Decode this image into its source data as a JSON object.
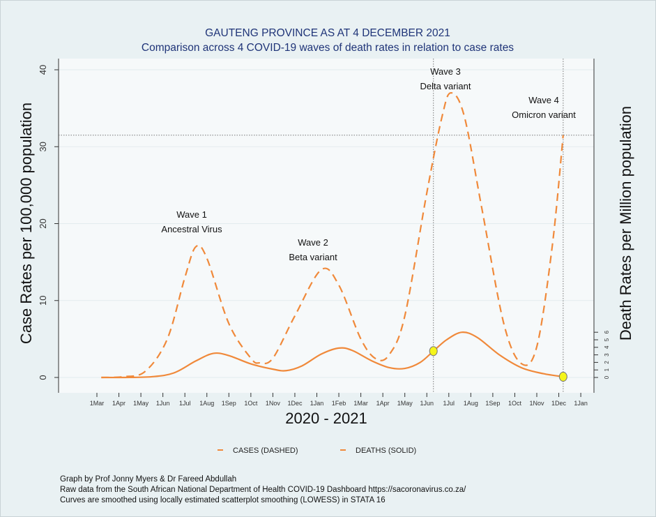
{
  "chart_data": {
    "type": "line",
    "title": "GAUTENG PROVINCE AS AT 4 DECEMBER 2021",
    "subtitle": "Comparison across 4 COVID-19 waves of death rates in relation to case rates",
    "xlabel": "2020 - 2021",
    "ylabel": "Case Rates per 100,000 population",
    "y2label": "Death Rates per Million population",
    "x_ticks": [
      "1Mar",
      "1Apr",
      "1May",
      "1Jun",
      "1Jul",
      "1Aug",
      "1Sep",
      "1Oct",
      "1Nov",
      "1Dec",
      "1Jan",
      "1Feb",
      "1Mar",
      "1Apr",
      "1May",
      "1Jun",
      "1Jul",
      "1Aug",
      "1Sep",
      "1Oct",
      "1Nov",
      "1Dec",
      "1Jan"
    ],
    "y_ticks": [
      "0",
      "10",
      "20",
      "30",
      "40"
    ],
    "y2_ticks": [
      "0",
      "1",
      "2",
      "3",
      "4",
      "5",
      "6"
    ],
    "ylim": [
      0,
      40
    ],
    "y2lim": [
      0,
      6
    ],
    "x_unit": "months since 1 Mar 2020",
    "grid": true,
    "legend_placement": "bottom",
    "series": [
      {
        "name": "CASES (DASHED)",
        "style": "dashed",
        "axis": "left",
        "points": [
          [
            0.2,
            0
          ],
          [
            1.2,
            0.1
          ],
          [
            2.2,
            0.8
          ],
          [
            3.2,
            5
          ],
          [
            4,
            13
          ],
          [
            4.5,
            17
          ],
          [
            5,
            15.5
          ],
          [
            6,
            7
          ],
          [
            7,
            2.5
          ],
          [
            7.4,
            1.9
          ],
          [
            8,
            2.5
          ],
          [
            9,
            8
          ],
          [
            10.2,
            14
          ],
          [
            11,
            12
          ],
          [
            12,
            5
          ],
          [
            12.7,
            2.4
          ],
          [
            13.3,
            3
          ],
          [
            14,
            8
          ],
          [
            15,
            24
          ],
          [
            15.7,
            34
          ],
          [
            16.1,
            37
          ],
          [
            16.7,
            34
          ],
          [
            17.5,
            22
          ],
          [
            18.5,
            7
          ],
          [
            19.3,
            1.8
          ],
          [
            20,
            4
          ],
          [
            20.7,
            17
          ],
          [
            21.2,
            31.5
          ]
        ]
      },
      {
        "name": "DEATHS (SOLID)",
        "style": "solid",
        "axis": "right",
        "points": [
          [
            0.2,
            0
          ],
          [
            1.2,
            0
          ],
          [
            2.5,
            0.1
          ],
          [
            3.5,
            0.6
          ],
          [
            4.5,
            2.2
          ],
          [
            5.3,
            3.2
          ],
          [
            6,
            2.9
          ],
          [
            7,
            1.8
          ],
          [
            8,
            1.1
          ],
          [
            8.6,
            0.9
          ],
          [
            9.3,
            1.5
          ],
          [
            10.2,
            3.1
          ],
          [
            11,
            3.9
          ],
          [
            11.6,
            3.6
          ],
          [
            12.5,
            2.2
          ],
          [
            13.3,
            1.3
          ],
          [
            14,
            1.2
          ],
          [
            14.7,
            2
          ],
          [
            15.3,
            3.5
          ],
          [
            15.9,
            5
          ],
          [
            16.6,
            6
          ],
          [
            17.3,
            5.3
          ],
          [
            18.3,
            3
          ],
          [
            19.3,
            1.3
          ],
          [
            20.3,
            0.5
          ],
          [
            21.2,
            0.1
          ]
        ]
      }
    ],
    "highlight_points": [
      {
        "series": "DEATHS (SOLID)",
        "x": 15.3,
        "y": 3.5
      },
      {
        "series": "DEATHS (SOLID)",
        "x": 21.2,
        "y": 0.1
      }
    ],
    "reference_lines": {
      "vertical_x": [
        15.3,
        21.2
      ],
      "horizontal_y": 31.5
    },
    "annotations": [
      {
        "lines": [
          "Wave 1",
          "Ancestral Virus"
        ]
      },
      {
        "lines": [
          "Wave 2",
          "Beta  variant"
        ]
      },
      {
        "lines": [
          "Wave 3",
          "Delta  variant"
        ]
      },
      {
        "lines": [
          "Wave 4",
          "Omicron  variant"
        ]
      }
    ],
    "colors": {
      "series": "#f0893a",
      "highlight": "#f5f51a",
      "title": "#1f3478",
      "background": "#e9f1f3",
      "plot": "#f6f9fa"
    }
  },
  "footer": [
    "Graph by Prof Jonny Myers & Dr Fareed Abdullah",
    "Raw data from the South African National Department of Health COVID-19 Dashboard  https://sacoronavirus.co.za/",
    "Curves are smoothed using locally estimated scatterplot smoothing (LOWESS) in STATA 16"
  ]
}
